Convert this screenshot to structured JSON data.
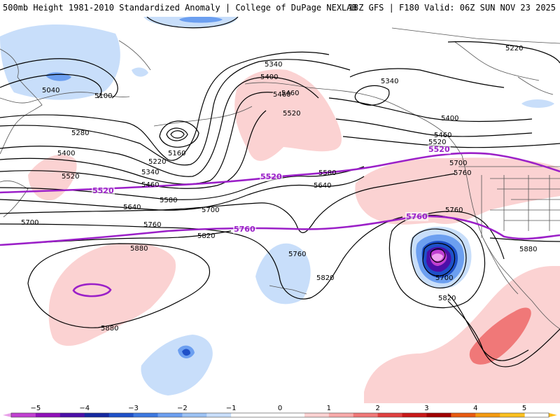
{
  "header": {
    "title_left": "500mb Height 1981-2010 Standardized Anomaly | College of DuPage NEXLAB",
    "title_right": "18Z GFS | F180 Valid: 06Z SUN NOV 23 2025"
  },
  "colors": {
    "contour": "#000000",
    "highlight_contour": "#9b20c8",
    "coast": "#555555"
  },
  "contour_labels": [
    {
      "id": "5040",
      "text": "5040"
    },
    {
      "id": "5100",
      "text": "5100"
    },
    {
      "id": "5280",
      "text": "5280"
    },
    {
      "id": "5400a",
      "text": "5400"
    },
    {
      "id": "5520a",
      "text": "5520"
    },
    {
      "id": "5160",
      "text": "5160"
    },
    {
      "id": "5220a",
      "text": "5220"
    },
    {
      "id": "5340a",
      "text": "5340"
    },
    {
      "id": "5460a",
      "text": "5460"
    },
    {
      "id": "5580a",
      "text": "5580"
    },
    {
      "id": "5640a",
      "text": "5640"
    },
    {
      "id": "5700a",
      "text": "5700"
    },
    {
      "id": "5700b",
      "text": "5700"
    },
    {
      "id": "5760a",
      "text": "5760"
    },
    {
      "id": "5820a",
      "text": "5820"
    },
    {
      "id": "5340b",
      "text": "5340"
    },
    {
      "id": "5400b",
      "text": "5400"
    },
    {
      "id": "5460b",
      "text": "5460"
    },
    {
      "id": "5520b",
      "text": "5520"
    },
    {
      "id": "5340c",
      "text": "5340"
    },
    {
      "id": "5220b",
      "text": "5220"
    },
    {
      "id": "5400c",
      "text": "5400"
    },
    {
      "id": "5460c",
      "text": "5460"
    },
    {
      "id": "5520c",
      "text": "5520"
    },
    {
      "id": "5580b",
      "text": "5580"
    },
    {
      "id": "5640b",
      "text": "5640"
    },
    {
      "id": "5700c",
      "text": "5700"
    },
    {
      "id": "5760b",
      "text": "5760"
    },
    {
      "id": "5760c",
      "text": "5760"
    },
    {
      "id": "5760d",
      "text": "5760"
    },
    {
      "id": "5820b",
      "text": "5820"
    },
    {
      "id": "5880a",
      "text": "5880"
    },
    {
      "id": "5880b",
      "text": "5880"
    },
    {
      "id": "5700d",
      "text": "5700"
    },
    {
      "id": "5820c",
      "text": "5820"
    },
    {
      "id": "5460d",
      "text": "5460"
    },
    {
      "id": "5880c",
      "text": "5880"
    }
  ],
  "purple_labels": [
    {
      "id": "p5520a",
      "text": "5520"
    },
    {
      "id": "p5520b",
      "text": "5520"
    },
    {
      "id": "p5520c",
      "text": "5520"
    },
    {
      "id": "p5760a",
      "text": "5760"
    },
    {
      "id": "p5760b",
      "text": "5760"
    }
  ],
  "colorbar": {
    "ticks": [
      "−5",
      "−4",
      "−3",
      "−2",
      "−1",
      "0",
      "1",
      "2",
      "3",
      "4",
      "5"
    ],
    "stops": [
      {
        "value": -5.5,
        "color": "#e8a0e8"
      },
      {
        "value": -5,
        "color": "#c040d0"
      },
      {
        "value": -4.5,
        "color": "#9010b8"
      },
      {
        "value": -4,
        "color": "#4b0fa8"
      },
      {
        "value": -3.5,
        "color": "#1428a0"
      },
      {
        "value": -3,
        "color": "#1e50c8"
      },
      {
        "value": -2.5,
        "color": "#3c78e0"
      },
      {
        "value": -2,
        "color": "#6c9ff0"
      },
      {
        "value": -1.5,
        "color": "#9cc2f4"
      },
      {
        "value": -1,
        "color": "#c8defa"
      },
      {
        "value": -0.5,
        "color": "#ffffff"
      },
      {
        "value": 0.5,
        "color": "#ffffff"
      },
      {
        "value": 1,
        "color": "#fbd2d2"
      },
      {
        "value": 1.5,
        "color": "#f8aaaa"
      },
      {
        "value": 2,
        "color": "#f07878"
      },
      {
        "value": 2.5,
        "color": "#e04040"
      },
      {
        "value": 3,
        "color": "#c81818"
      },
      {
        "value": 3.5,
        "color": "#a00000"
      },
      {
        "value": 4,
        "color": "#e85a10"
      },
      {
        "value": 4.5,
        "color": "#f49a10"
      },
      {
        "value": 5,
        "color": "#fcc020"
      }
    ]
  },
  "anomaly_colors": {
    "neg1": "#c8defa",
    "neg2": "#6c9ff0",
    "neg3": "#1e50c8",
    "neg4": "#4b0fa8",
    "neg5": "#c040d0",
    "neg6": "#f0a0f0",
    "pos1": "#fbd2d2",
    "pos2": "#f07878"
  }
}
